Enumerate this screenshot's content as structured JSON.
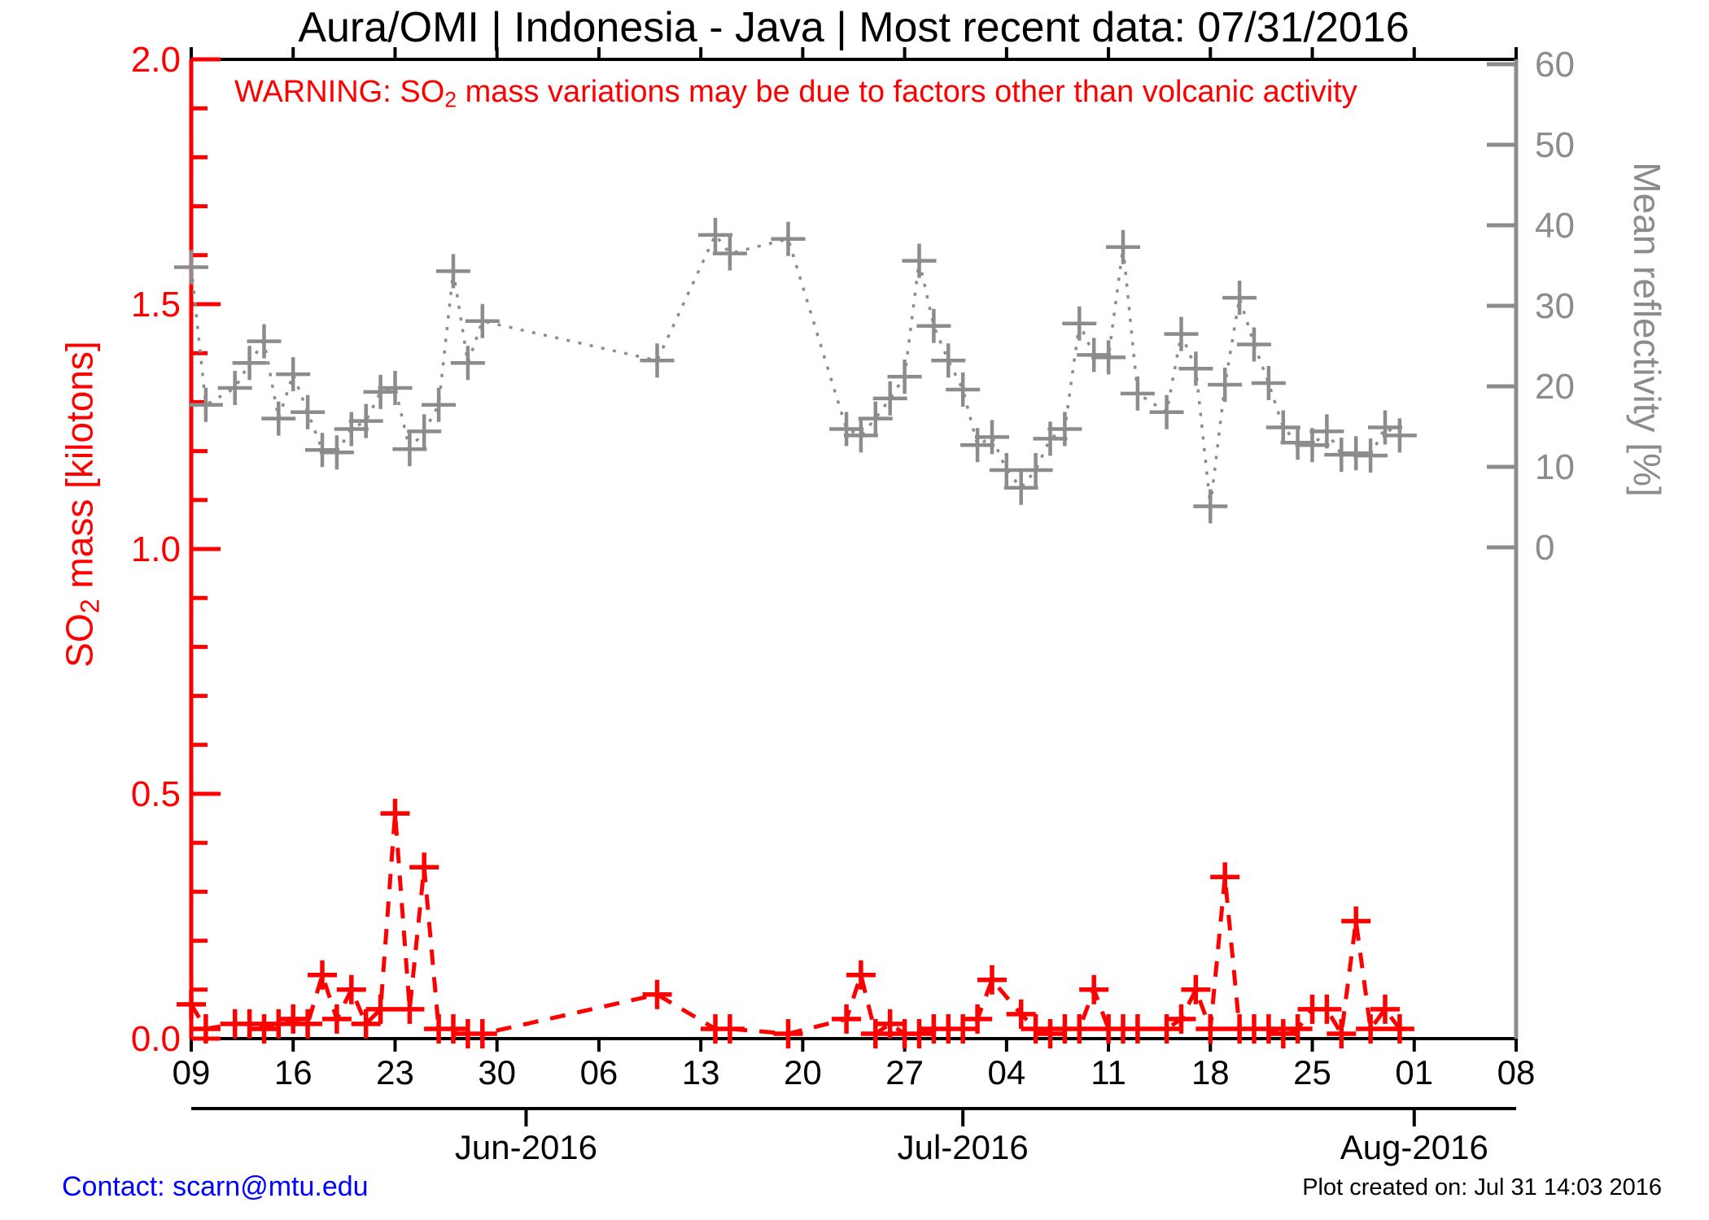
{
  "title": "Aura/OMI | Indonesia - Java | Most recent data: 07/31/2016",
  "warning": {
    "prefix": "WARNING: SO",
    "sub": "2",
    "suffix": " mass variations may be due to factors other than volcanic activity"
  },
  "footer": {
    "contact": "Contact: scarn@mtu.edu",
    "created": "Plot created on: Jul 31 14:03 2016"
  },
  "colors": {
    "so2": "#ff0000",
    "reflectivity": "#8c8c8c",
    "axis_black": "#000000",
    "contact_blue": "#0000ff"
  },
  "chart_data": {
    "type": "line",
    "title": "Aura/OMI | Indonesia - Java | Most recent data: 07/31/2016",
    "x_axis": {
      "start_date": "2016-05-09",
      "end_date": "2016-08-08",
      "tick_interval_days": 7,
      "week_tick_labels": [
        "09",
        "16",
        "23",
        "30",
        "06",
        "13",
        "20",
        "27",
        "04",
        "11",
        "18",
        "25",
        "01",
        "08"
      ],
      "month_ticks": [
        {
          "label": "Jun-2016",
          "date": "2016-06-01"
        },
        {
          "label": "Jul-2016",
          "date": "2016-07-01"
        },
        {
          "label": "Aug-2016",
          "date": "2016-08-01"
        }
      ]
    },
    "y_left": {
      "label_prefix": "SO",
      "label_sub": "2",
      "label_suffix": " mass [kilotons]",
      "range": [
        0,
        2
      ],
      "tick_labels": [
        "0.0",
        "0.5",
        "1.0",
        "1.5",
        "2.0"
      ],
      "minor_tick_step": 0.1,
      "color": "#ff0000"
    },
    "y_right": {
      "label": "Mean reflectivity [%]",
      "range_shown": [
        0,
        60
      ],
      "tick_labels": [
        "0",
        "10",
        "20",
        "30",
        "40",
        "50",
        "60"
      ],
      "color": "#8c8c8c"
    },
    "grid": false,
    "legend": "none",
    "series": [
      {
        "name": "SO2 mass",
        "axis": "left",
        "units": "kilotons",
        "color": "#ff0000",
        "line_style": "dashed",
        "marker": "plus",
        "points": [
          [
            "2016-05-09",
            0.07
          ],
          [
            "2016-05-10",
            0.02
          ],
          [
            "2016-05-12",
            0.03
          ],
          [
            "2016-05-13",
            0.03
          ],
          [
            "2016-05-14",
            0.02
          ],
          [
            "2016-05-15",
            0.03
          ],
          [
            "2016-05-16",
            0.04
          ],
          [
            "2016-05-17",
            0.03
          ],
          [
            "2016-05-18",
            0.13
          ],
          [
            "2016-05-19",
            0.04
          ],
          [
            "2016-05-20",
            0.1
          ],
          [
            "2016-05-21",
            0.03
          ],
          [
            "2016-05-22",
            0.06
          ],
          [
            "2016-05-23",
            0.46
          ],
          [
            "2016-05-24",
            0.06
          ],
          [
            "2016-05-25",
            0.35
          ],
          [
            "2016-05-26",
            0.02
          ],
          [
            "2016-05-27",
            0.02
          ],
          [
            "2016-05-28",
            0.01
          ],
          [
            "2016-05-29",
            0.01
          ],
          [
            "2016-06-10",
            0.09
          ],
          [
            "2016-06-14",
            0.02
          ],
          [
            "2016-06-15",
            0.02
          ],
          [
            "2016-06-19",
            0.01
          ],
          [
            "2016-06-23",
            0.04
          ],
          [
            "2016-06-24",
            0.13
          ],
          [
            "2016-06-25",
            0.01
          ],
          [
            "2016-06-26",
            0.03
          ],
          [
            "2016-06-27",
            0.01
          ],
          [
            "2016-06-28",
            0.01
          ],
          [
            "2016-06-29",
            0.02
          ],
          [
            "2016-06-30",
            0.02
          ],
          [
            "2016-07-01",
            0.02
          ],
          [
            "2016-07-02",
            0.04
          ],
          [
            "2016-07-03",
            0.12
          ],
          [
            "2016-07-05",
            0.05
          ],
          [
            "2016-07-06",
            0.02
          ],
          [
            "2016-07-07",
            0.01
          ],
          [
            "2016-07-08",
            0.02
          ],
          [
            "2016-07-09",
            0.02
          ],
          [
            "2016-07-10",
            0.1
          ],
          [
            "2016-07-11",
            0.02
          ],
          [
            "2016-07-12",
            0.02
          ],
          [
            "2016-07-13",
            0.02
          ],
          [
            "2016-07-15",
            0.02
          ],
          [
            "2016-07-16",
            0.04
          ],
          [
            "2016-07-17",
            0.1
          ],
          [
            "2016-07-18",
            0.02
          ],
          [
            "2016-07-19",
            0.33
          ],
          [
            "2016-07-20",
            0.02
          ],
          [
            "2016-07-21",
            0.02
          ],
          [
            "2016-07-22",
            0.02
          ],
          [
            "2016-07-23",
            0.01
          ],
          [
            "2016-07-24",
            0.02
          ],
          [
            "2016-07-25",
            0.06
          ],
          [
            "2016-07-26",
            0.06
          ],
          [
            "2016-07-27",
            0.01
          ],
          [
            "2016-07-28",
            0.24
          ],
          [
            "2016-07-29",
            0.02
          ],
          [
            "2016-07-30",
            0.06
          ],
          [
            "2016-07-31",
            0.02
          ]
        ]
      },
      {
        "name": "Mean reflectivity",
        "axis": "right",
        "units": "%",
        "color": "#8c8c8c",
        "line_style": "dotted",
        "marker": "plus",
        "points": [
          [
            "2016-05-09",
            34.8
          ],
          [
            "2016-05-10",
            17.7
          ],
          [
            "2016-05-12",
            19.8
          ],
          [
            "2016-05-13",
            22.9
          ],
          [
            "2016-05-14",
            25.6
          ],
          [
            "2016-05-15",
            16.0
          ],
          [
            "2016-05-16",
            21.5
          ],
          [
            "2016-05-17",
            16.8
          ],
          [
            "2016-05-18",
            12.1
          ],
          [
            "2016-05-19",
            11.8
          ],
          [
            "2016-05-20",
            14.7
          ],
          [
            "2016-05-21",
            15.7
          ],
          [
            "2016-05-22",
            19.3
          ],
          [
            "2016-05-23",
            19.8
          ],
          [
            "2016-05-24",
            12.2
          ],
          [
            "2016-05-25",
            14.4
          ],
          [
            "2016-05-26",
            17.7
          ],
          [
            "2016-05-27",
            34.3
          ],
          [
            "2016-05-28",
            22.9
          ],
          [
            "2016-05-29",
            28.1
          ],
          [
            "2016-06-10",
            23.2
          ],
          [
            "2016-06-14",
            38.8
          ],
          [
            "2016-06-15",
            36.5
          ],
          [
            "2016-06-19",
            38.3
          ],
          [
            "2016-06-23",
            14.7
          ],
          [
            "2016-06-24",
            13.9
          ],
          [
            "2016-06-25",
            16.0
          ],
          [
            "2016-06-26",
            18.5
          ],
          [
            "2016-06-27",
            21.2
          ],
          [
            "2016-06-28",
            35.6
          ],
          [
            "2016-06-29",
            27.5
          ],
          [
            "2016-06-30",
            23.2
          ],
          [
            "2016-07-01",
            19.6
          ],
          [
            "2016-07-02",
            12.7
          ],
          [
            "2016-07-03",
            13.7
          ],
          [
            "2016-07-04",
            9.6
          ],
          [
            "2016-07-05",
            7.4
          ],
          [
            "2016-07-06",
            9.6
          ],
          [
            "2016-07-07",
            13.5
          ],
          [
            "2016-07-08",
            14.7
          ],
          [
            "2016-07-09",
            27.8
          ],
          [
            "2016-07-10",
            23.9
          ],
          [
            "2016-07-11",
            23.6
          ],
          [
            "2016-07-12",
            37.3
          ],
          [
            "2016-07-13",
            19.1
          ],
          [
            "2016-07-15",
            16.8
          ],
          [
            "2016-07-16",
            26.5
          ],
          [
            "2016-07-17",
            22.2
          ],
          [
            "2016-07-18",
            5.1
          ],
          [
            "2016-07-19",
            20.2
          ],
          [
            "2016-07-20",
            31.0
          ],
          [
            "2016-07-21",
            25.2
          ],
          [
            "2016-07-22",
            20.4
          ],
          [
            "2016-07-23",
            14.9
          ],
          [
            "2016-07-24",
            13.0
          ],
          [
            "2016-07-25",
            12.7
          ],
          [
            "2016-07-26",
            14.4
          ],
          [
            "2016-07-27",
            11.5
          ],
          [
            "2016-07-28",
            11.7
          ],
          [
            "2016-07-29",
            11.4
          ],
          [
            "2016-07-30",
            14.9
          ],
          [
            "2016-07-31",
            13.9
          ]
        ]
      }
    ]
  }
}
